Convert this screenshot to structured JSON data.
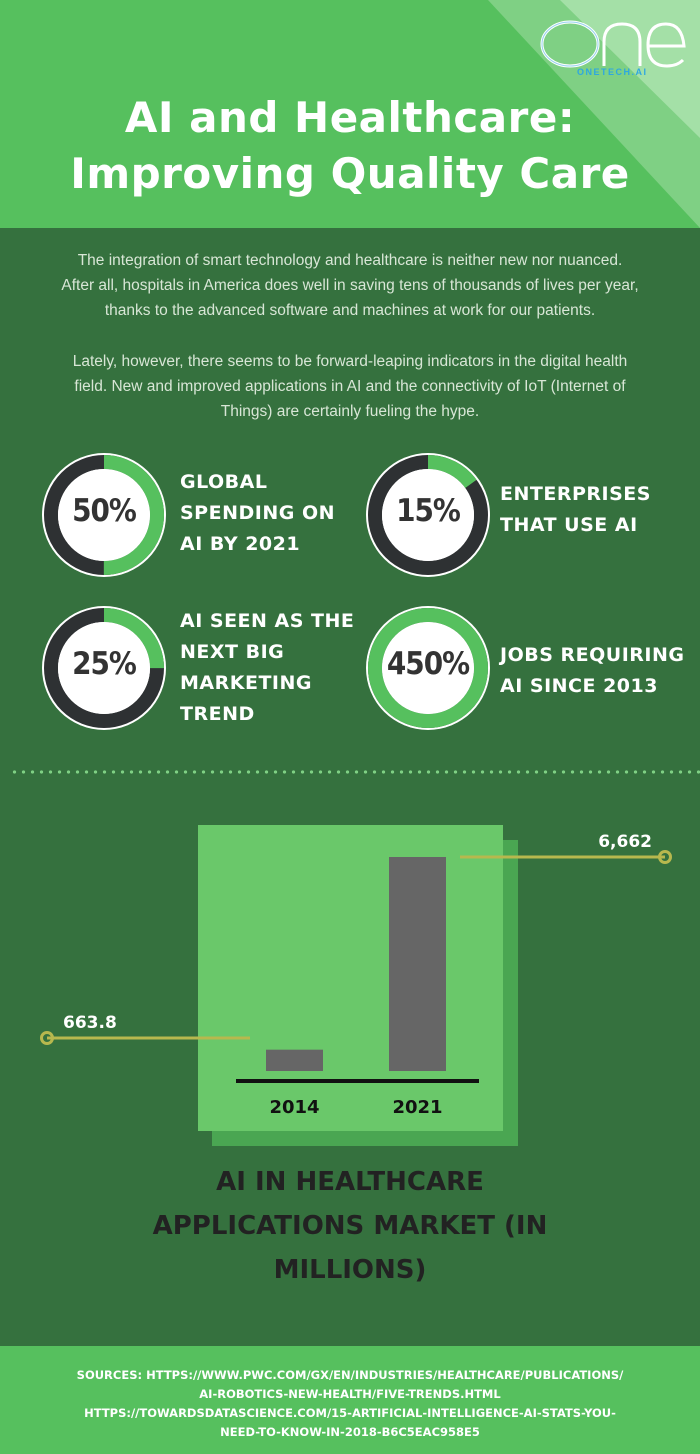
{
  "header": {
    "title_line1": "AI and Healthcare:",
    "title_line2": "Improving Quality Care",
    "logo_text": "ONE",
    "logo_subtext": "ONETECH.AI"
  },
  "intro": {
    "paragraph1": "The integration of smart technology and healthcare is neither new nor nuanced. After all, hospitals in America does well in saving tens of thousands of lives per year, thanks to the advanced software and machines at work for our patients.",
    "paragraph2": "Lately, however, there seems to be forward-leaping indicators in the digital health field. New and improved applications in AI and the connectivity of IoT (Internet of Things) are certainly fueling the hype."
  },
  "stats": [
    {
      "value": "50%",
      "fraction": 0.5,
      "label": "GLOBAL SPENDING ON AI BY 2021"
    },
    {
      "value": "15%",
      "fraction": 0.15,
      "label": "ENTERPRISES THAT USE AI"
    },
    {
      "value": "25%",
      "fraction": 0.25,
      "label": "AI SEEN AS THE NEXT BIG MARKETING TREND"
    },
    {
      "value": "450%",
      "fraction": 1.0,
      "label": "JOBS REQUIRING AI SINCE 2013"
    }
  ],
  "chart_data": {
    "type": "bar",
    "categories": [
      "2014",
      "2021"
    ],
    "values": [
      663.8,
      6662
    ],
    "value_labels": [
      "663.8",
      "6,662"
    ],
    "title": "AI IN HEALTHCARE APPLICATIONS MARKET (IN MILLIONS)",
    "xlabel": "",
    "ylabel": ""
  },
  "footer": {
    "sources": [
      "SOURCES: HTTPS://WWW.PWC.COM/GX/EN/INDUSTRIES/HEALTHCARE/PUBLICATIONS/",
      "AI-ROBOTICS-NEW-HEALTH/FIVE-TRENDS.HTML",
      "HTTPS://TOWARDSDATASCIENCE.COM/15-ARTIFICIAL-INTELLIGENCE-AI-STATS-YOU-",
      "NEED-TO-KNOW-IN-2018-B6C5EAC958E5"
    ]
  },
  "colors": {
    "background": "#35713e",
    "accent_green": "#56c05e",
    "ring_dark": "#2e3133",
    "ring_progress": "#56c05e",
    "bar": "#666666",
    "leader_line": "#b7b84e",
    "logo_blue": "#2ea7e0"
  }
}
